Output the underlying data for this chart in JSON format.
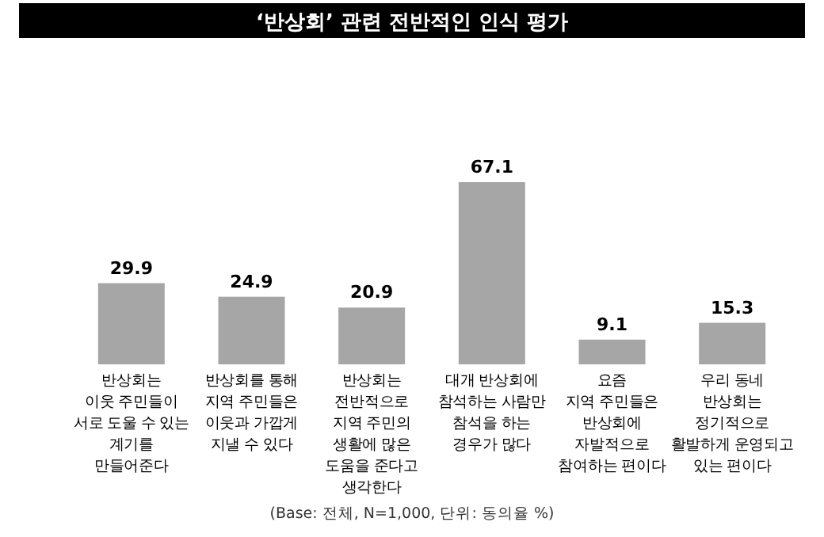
{
  "chart_data": {
    "type": "bar",
    "title": "‘반상회’ 관련 전반적인 인식 평가",
    "categories": [
      "반상회는\n이웃 주민들이\n서로 도울 수 있는\n계기를\n만들어준다",
      "반상회를 통해\n지역 주민들은\n이웃과 가깝게\n지낼 수 있다",
      "반상회는\n전반적으로\n지역 주민의\n생활에 많은\n도움을 준다고\n생각한다",
      "대개 반상회에\n참석하는 사람만\n참석을 하는\n경우가 많다",
      "요즘\n지역 주민들은\n반상회에\n자발적으로\n참여하는 편이다",
      "우리 동네\n반상회는\n정기적으로\n활발하게 운영되고\n있는 편이다"
    ],
    "values": [
      29.9,
      24.9,
      20.9,
      67.1,
      9.1,
      15.3
    ],
    "color": "#a6a6a6",
    "data_labels": true,
    "annotations": [
      "(Base: 전체, N=1,000, 단위: 동의율 %)"
    ]
  }
}
